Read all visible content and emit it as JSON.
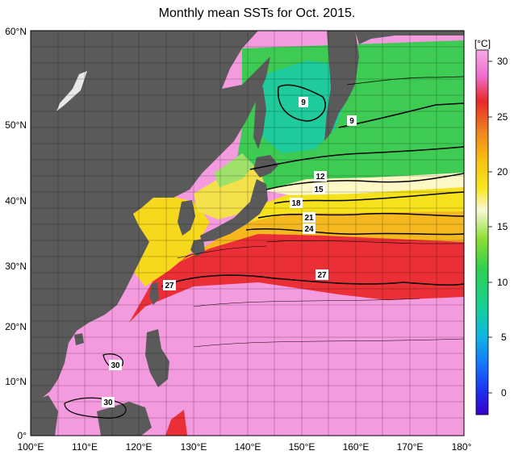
{
  "title": "Monthly mean SSTs for Oct. 2015.",
  "unit_label": "[°C]",
  "lon_labels": [
    "100°E",
    "110°E",
    "120°E",
    "130°E",
    "140°E",
    "150°E",
    "160°E",
    "170°E",
    "180°"
  ],
  "lat_labels": [
    "60°N",
    "50°N",
    "40°N",
    "30°N",
    "20°N",
    "10°N",
    "0°"
  ],
  "colorbar_ticks": [
    "30",
    "25",
    "20",
    "15",
    "10",
    "5",
    "0"
  ],
  "contour_labels": [
    "9",
    "9",
    "12",
    "15",
    "18",
    "21",
    "24",
    "27",
    "27",
    "30",
    "30"
  ],
  "colors": {
    "land": "#5a5a5a",
    "pink": "#f49adf",
    "magenta": "#ee82d6",
    "red": "#ea2f37",
    "orange": "#f38a21",
    "yellow": "#f6e21c",
    "cream": "#fdf8c6",
    "green": "#3ecb53",
    "teal": "#1fca9c"
  }
}
